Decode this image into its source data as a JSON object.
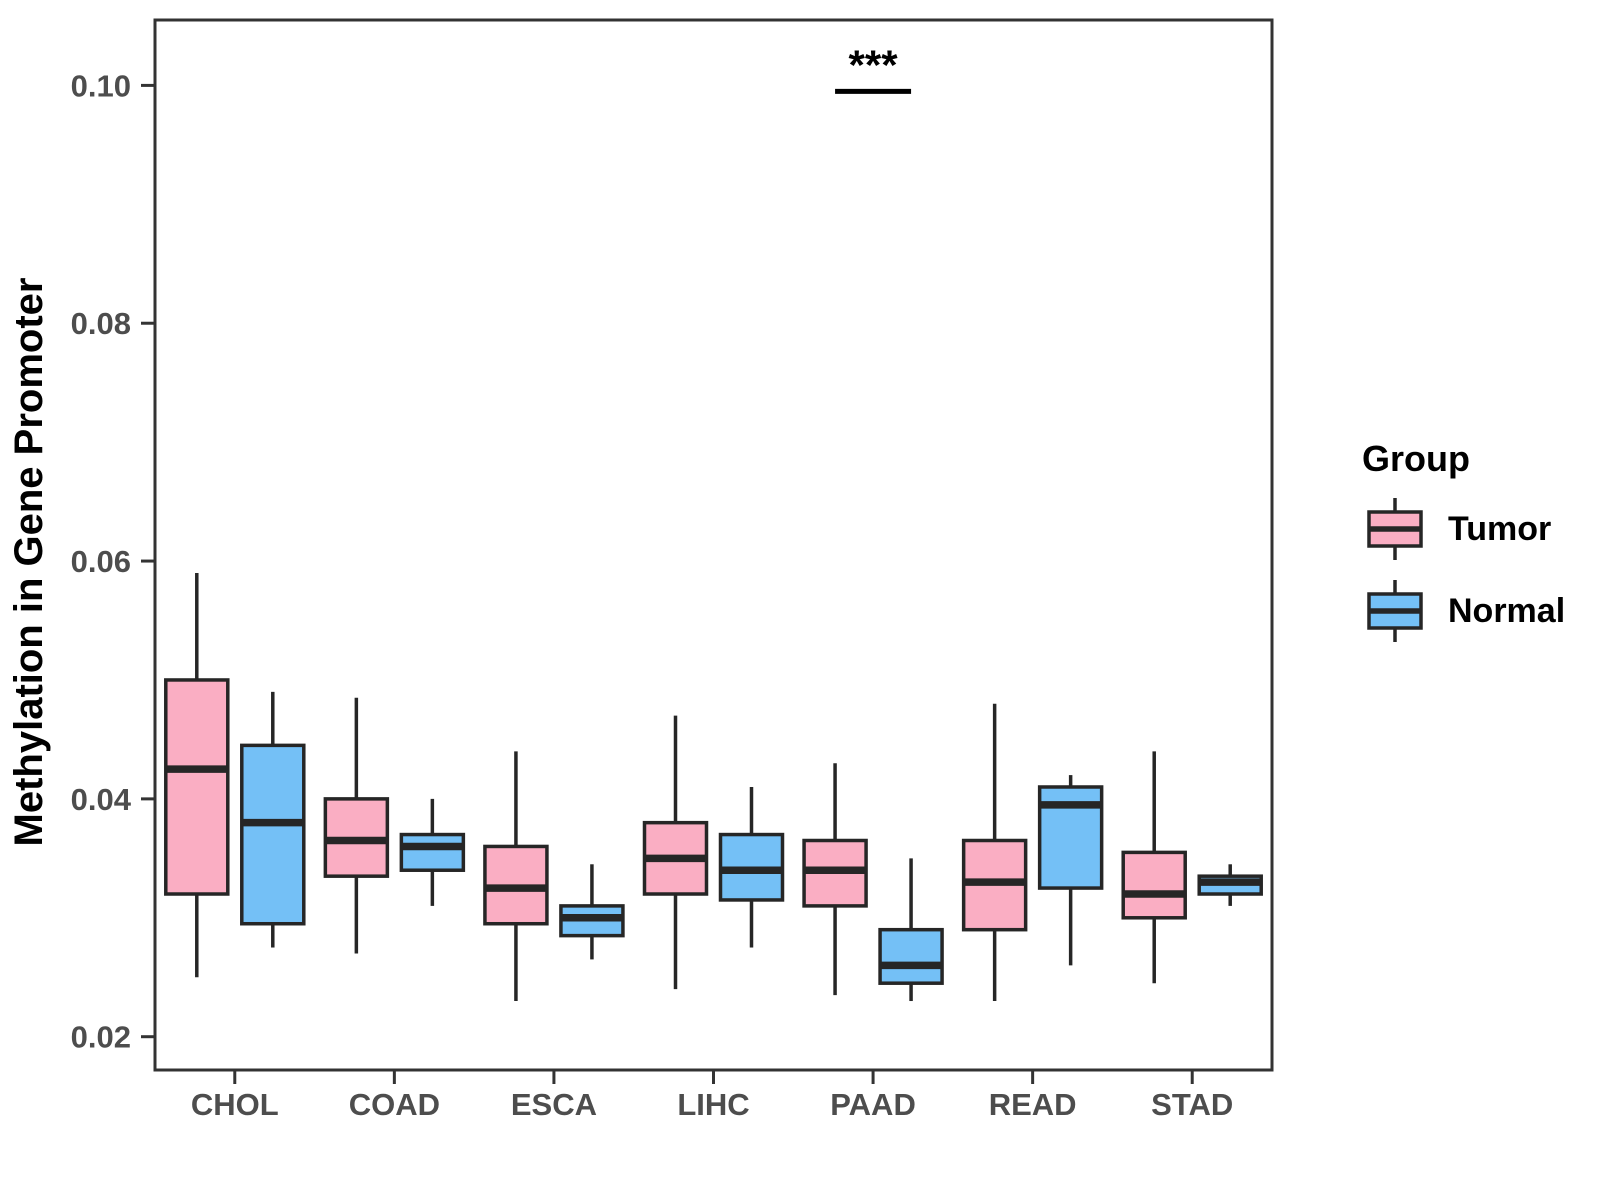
{
  "chart_data": {
    "type": "grouped_boxplot",
    "title": "",
    "xlabel": "",
    "ylabel": "Methylation in Gene Promoter",
    "categories": [
      "CHOL",
      "COAD",
      "ESCA",
      "LIHC",
      "PAAD",
      "READ",
      "STAD"
    ],
    "y_ticks": [
      {
        "label": "0.02",
        "value": 0.02
      },
      {
        "label": "0.04",
        "value": 0.04
      },
      {
        "label": "0.06",
        "value": 0.06
      },
      {
        "label": "0.08",
        "value": 0.08
      },
      {
        "label": "0.10",
        "value": 0.1
      }
    ],
    "ylim": [
      0.0172,
      0.1055
    ],
    "grid": false,
    "legend_position": "right",
    "series": [
      {
        "name": "Tumor",
        "color": "#FAAEC3",
        "boxes": [
          {
            "low": 0.025,
            "q1": 0.032,
            "med": 0.0425,
            "q3": 0.05,
            "high": 0.059
          },
          {
            "low": 0.027,
            "q1": 0.0335,
            "med": 0.0365,
            "q3": 0.04,
            "high": 0.0485
          },
          {
            "low": 0.023,
            "q1": 0.0295,
            "med": 0.0325,
            "q3": 0.036,
            "high": 0.044
          },
          {
            "low": 0.024,
            "q1": 0.032,
            "med": 0.035,
            "q3": 0.038,
            "high": 0.047
          },
          {
            "low": 0.0235,
            "q1": 0.031,
            "med": 0.034,
            "q3": 0.0365,
            "high": 0.043
          },
          {
            "low": 0.023,
            "q1": 0.029,
            "med": 0.033,
            "q3": 0.0365,
            "high": 0.048
          },
          {
            "low": 0.0245,
            "q1": 0.03,
            "med": 0.032,
            "q3": 0.0355,
            "high": 0.044
          }
        ]
      },
      {
        "name": "Normal",
        "color": "#74C0F6",
        "boxes": [
          {
            "low": 0.0275,
            "q1": 0.0295,
            "med": 0.038,
            "q3": 0.0445,
            "high": 0.049
          },
          {
            "low": 0.031,
            "q1": 0.034,
            "med": 0.036,
            "q3": 0.037,
            "high": 0.04
          },
          {
            "low": 0.0265,
            "q1": 0.0285,
            "med": 0.03,
            "q3": 0.031,
            "high": 0.0345
          },
          {
            "low": 0.0275,
            "q1": 0.0315,
            "med": 0.034,
            "q3": 0.037,
            "high": 0.041
          },
          {
            "low": 0.023,
            "q1": 0.0245,
            "med": 0.026,
            "q3": 0.029,
            "high": 0.035
          },
          {
            "low": 0.026,
            "q1": 0.0325,
            "med": 0.0395,
            "q3": 0.041,
            "high": 0.042
          },
          {
            "low": 0.031,
            "q1": 0.032,
            "med": 0.033,
            "q3": 0.0335,
            "high": 0.0345
          }
        ]
      }
    ],
    "significance": {
      "category": "PAAD",
      "between": [
        "Tumor",
        "Normal"
      ],
      "label": "***",
      "bar_value": 0.0995
    },
    "legend": {
      "title": "Group",
      "items": [
        {
          "label": "Tumor",
          "color": "#FAAEC3"
        },
        {
          "label": "Normal",
          "color": "#74C0F6"
        }
      ]
    },
    "styles": {
      "box_border": "#262626",
      "axis_color": "#333333",
      "tick_label_color": "#4d4d4d",
      "title_color": "#000000",
      "background": "#ffffff"
    }
  }
}
